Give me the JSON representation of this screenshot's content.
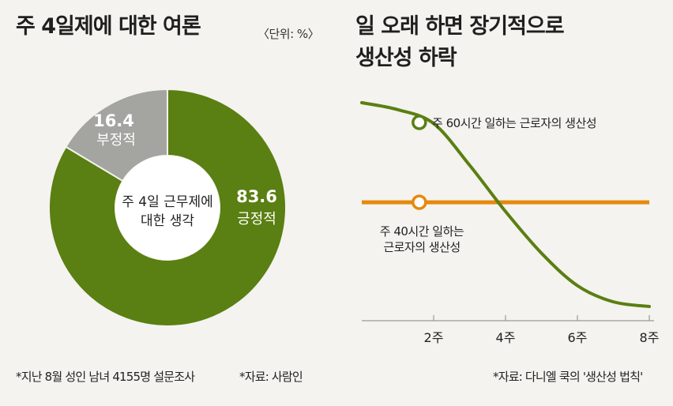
{
  "left": {
    "title": "주 4일제에 대한 여론",
    "unit": "〈단위: %〉",
    "source_note": "*지난 8월 성인 남녀 4155명 설문조사",
    "source_credit": "*자료: 사람인"
  },
  "right": {
    "title_line1": "일 오래 하면 장기적으로",
    "title_line2": "생산성 하락",
    "source": "*자료: 다니엘 쿡의 '생산성 법칙'"
  },
  "colors": {
    "green": "#5a7f12",
    "gray": "#a4a5a0",
    "orange": "#e6890c",
    "bg": "#f4f3ef"
  },
  "chart_data": [
    {
      "type": "pie",
      "center_label": [
        "주 4일 근무제에",
        "대한 생각"
      ],
      "slices": [
        {
          "label": "긍정적",
          "value": 83.6,
          "color": "#5a7f12"
        },
        {
          "label": "부정적",
          "value": 16.4,
          "color": "#a4a5a0"
        }
      ]
    },
    {
      "type": "line",
      "x_ticks": [
        "2주",
        "4주",
        "6주",
        "8주"
      ],
      "x": [
        0,
        1,
        2,
        3,
        4,
        5,
        6,
        7,
        8
      ],
      "xlim": [
        0,
        8
      ],
      "grid": false,
      "series": [
        {
          "name": "주 60시간 일하는 근로자의 생산성",
          "color": "#5a7f12",
          "values": [
            95,
            92,
            86,
            68,
            48,
            30,
            16,
            9,
            7
          ]
        },
        {
          "name": "주 40시간 일하는 근로자의 생산성",
          "color": "#e6890c",
          "values": [
            52,
            52,
            52,
            52,
            52,
            52,
            52,
            52,
            52
          ]
        }
      ]
    }
  ]
}
